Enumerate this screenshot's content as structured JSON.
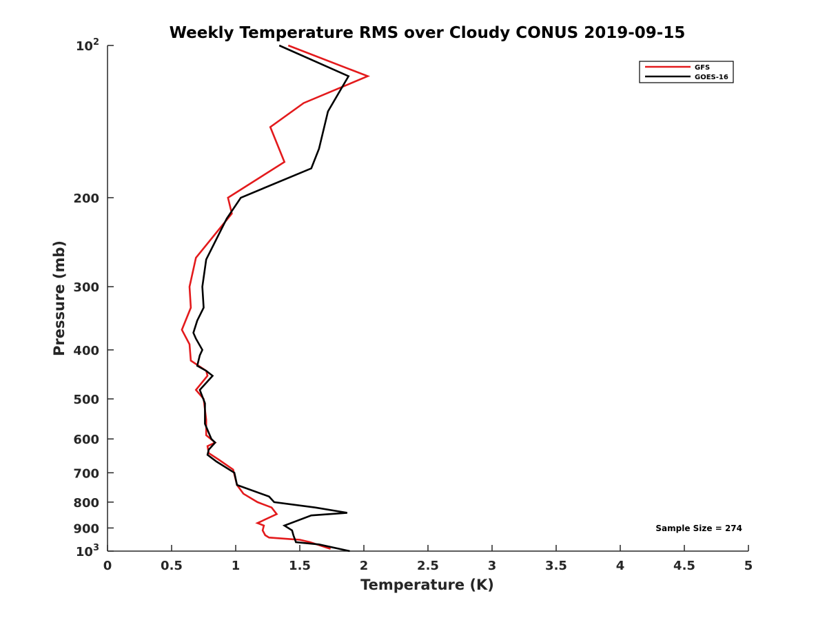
{
  "chart_data": {
    "type": "line",
    "title": "Weekly Temperature RMS over Cloudy CONUS 2019-09-15",
    "xlabel": "Temperature (K)",
    "ylabel": "Pressure (mb)",
    "xlim": [
      0,
      5
    ],
    "ylim": [
      100,
      1000
    ],
    "yscale": "log",
    "y_reversed": true,
    "grid": false,
    "x_ticks": [
      0,
      0.5,
      1,
      1.5,
      2,
      2.5,
      3,
      3.5,
      4,
      4.5,
      5
    ],
    "x_tick_labels": [
      "0",
      "0.5",
      "1",
      "1.5",
      "2",
      "2.5",
      "3",
      "3.5",
      "4",
      "4.5",
      "5"
    ],
    "y_ticks": [
      100,
      200,
      300,
      400,
      500,
      600,
      700,
      800,
      900,
      1000
    ],
    "y_tick_labels": [
      {
        "base": "10",
        "exp": "2"
      },
      {
        "base": "200",
        "exp": ""
      },
      {
        "base": "300",
        "exp": ""
      },
      {
        "base": "400",
        "exp": ""
      },
      {
        "base": "500",
        "exp": ""
      },
      {
        "base": "600",
        "exp": ""
      },
      {
        "base": "700",
        "exp": ""
      },
      {
        "base": "800",
        "exp": ""
      },
      {
        "base": "900",
        "exp": ""
      },
      {
        "base": "10",
        "exp": "3"
      }
    ],
    "legend_position": "top-right",
    "annotation": "Sample Size = 274",
    "series": [
      {
        "name": "GFS",
        "color": "#e31a1c",
        "points": [
          [
            1.41,
            100
          ],
          [
            2.03,
            115
          ],
          [
            1.53,
            130
          ],
          [
            1.27,
            145
          ],
          [
            1.38,
            170
          ],
          [
            0.94,
            200
          ],
          [
            0.97,
            215
          ],
          [
            0.69,
            263
          ],
          [
            0.64,
            300
          ],
          [
            0.65,
            330
          ],
          [
            0.58,
            365
          ],
          [
            0.64,
            390
          ],
          [
            0.65,
            420
          ],
          [
            0.77,
            440
          ],
          [
            0.78,
            450
          ],
          [
            0.69,
            480
          ],
          [
            0.75,
            500
          ],
          [
            0.77,
            550
          ],
          [
            0.77,
            590
          ],
          [
            0.84,
            610
          ],
          [
            0.78,
            620
          ],
          [
            0.79,
            640
          ],
          [
            0.87,
            660
          ],
          [
            0.98,
            690
          ],
          [
            1.01,
            740
          ],
          [
            1.06,
            770
          ],
          [
            1.17,
            800
          ],
          [
            1.28,
            820
          ],
          [
            1.32,
            845
          ],
          [
            1.17,
            880
          ],
          [
            1.22,
            890
          ],
          [
            1.21,
            910
          ],
          [
            1.23,
            930
          ],
          [
            1.26,
            940
          ],
          [
            1.5,
            950
          ],
          [
            1.58,
            960
          ],
          [
            1.74,
            990
          ]
        ]
      },
      {
        "name": "GOES-16",
        "color": "#000000",
        "points": [
          [
            1.34,
            100
          ],
          [
            1.88,
            115
          ],
          [
            1.72,
            135
          ],
          [
            1.65,
            160
          ],
          [
            1.59,
            175
          ],
          [
            1.04,
            200
          ],
          [
            0.93,
            220
          ],
          [
            0.77,
            265
          ],
          [
            0.74,
            300
          ],
          [
            0.75,
            330
          ],
          [
            0.7,
            350
          ],
          [
            0.67,
            370
          ],
          [
            0.69,
            380
          ],
          [
            0.74,
            400
          ],
          [
            0.72,
            410
          ],
          [
            0.7,
            430
          ],
          [
            0.77,
            440
          ],
          [
            0.82,
            450
          ],
          [
            0.72,
            480
          ],
          [
            0.76,
            510
          ],
          [
            0.76,
            560
          ],
          [
            0.81,
            600
          ],
          [
            0.84,
            610
          ],
          [
            0.79,
            630
          ],
          [
            0.78,
            645
          ],
          [
            0.85,
            665
          ],
          [
            0.99,
            700
          ],
          [
            1.01,
            740
          ],
          [
            1.26,
            780
          ],
          [
            1.3,
            800
          ],
          [
            1.62,
            820
          ],
          [
            1.87,
            840
          ],
          [
            1.59,
            850
          ],
          [
            1.38,
            890
          ],
          [
            1.44,
            910
          ],
          [
            1.45,
            930
          ],
          [
            1.47,
            960
          ],
          [
            1.65,
            970
          ],
          [
            1.89,
            1000
          ]
        ]
      }
    ]
  }
}
